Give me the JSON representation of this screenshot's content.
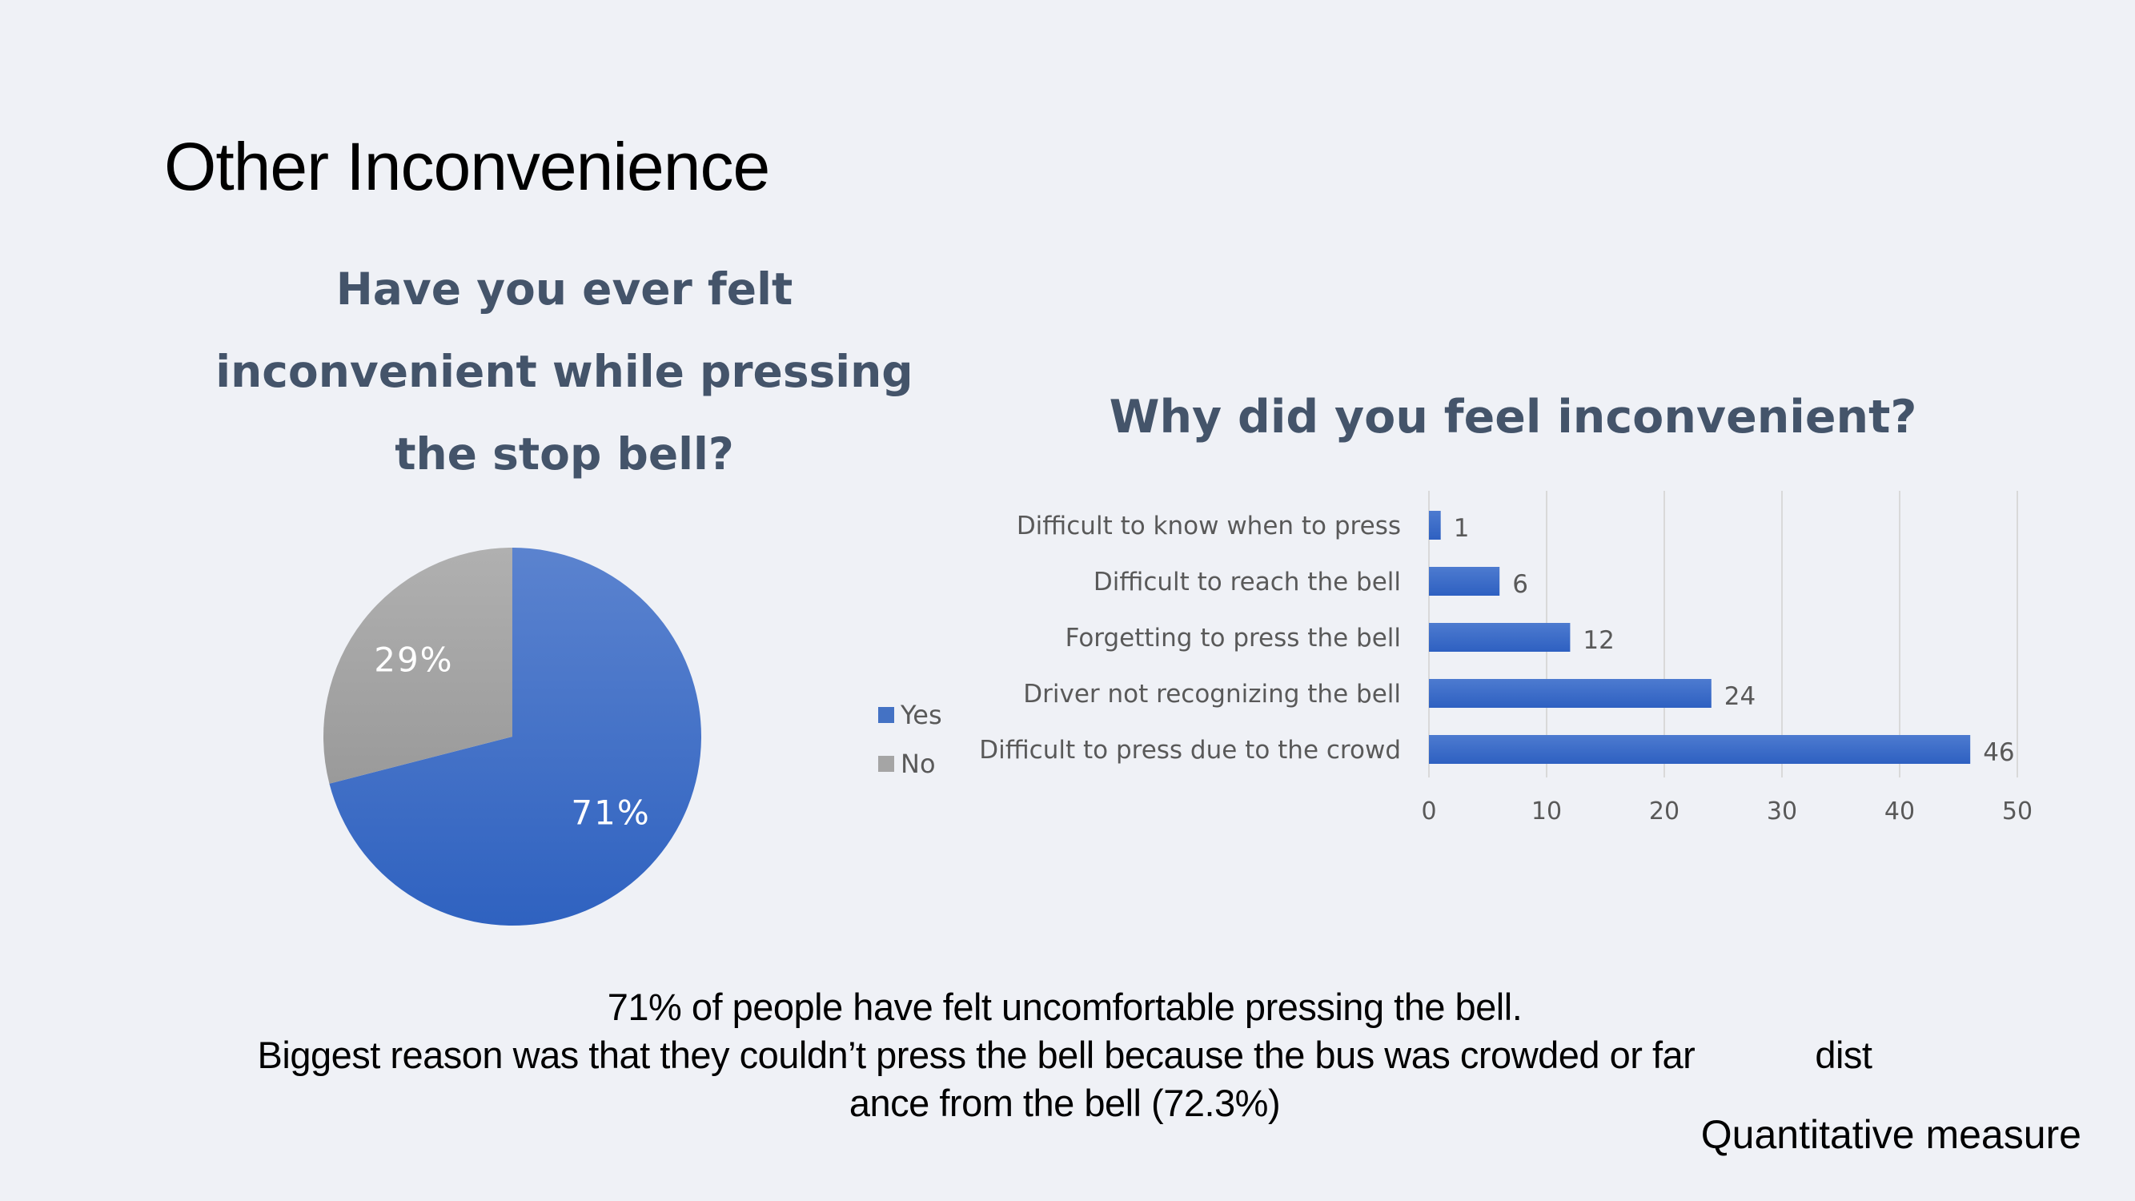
{
  "slide": {
    "title": "Other Inconvenience",
    "footer": {
      "line1_bold": "71%",
      "line1_rest": " of people have felt uncomfortable pressing the bell.",
      "line2_plain": "Biggest reason was that they couldn’t press the bell because ",
      "line2_em": "the bus was crowded or far",
      "line2_tail": "dist",
      "line3": "ance from the bell (72.3%)"
    },
    "tag": "Quantitative measure"
  },
  "colors": {
    "blue": "#4472c4",
    "gray": "#a5a5a5",
    "title_text": "#44546a",
    "axis_text": "#595959"
  },
  "chart_data": [
    {
      "type": "pie",
      "title_lines": [
        "Have you ever felt",
        "inconvenient while pressing",
        "the stop bell?"
      ],
      "categories": [
        "Yes",
        "No"
      ],
      "values": [
        71,
        29
      ],
      "labels": [
        "71%",
        "29%"
      ],
      "legend": "right"
    },
    {
      "type": "bar",
      "orientation": "horizontal",
      "title": "Why did you feel inconvenient?",
      "categories": [
        "Difficult to know when to press",
        "Difficult to reach the bell",
        "Forgetting to press the bell",
        "Driver not recognizing the bell",
        "Difficult to press due to the crowd"
      ],
      "values": [
        1,
        6,
        12,
        24,
        46
      ],
      "xlim": [
        0,
        50
      ],
      "xticks": [
        0,
        10,
        20,
        30,
        40,
        50
      ],
      "grid": true
    }
  ]
}
